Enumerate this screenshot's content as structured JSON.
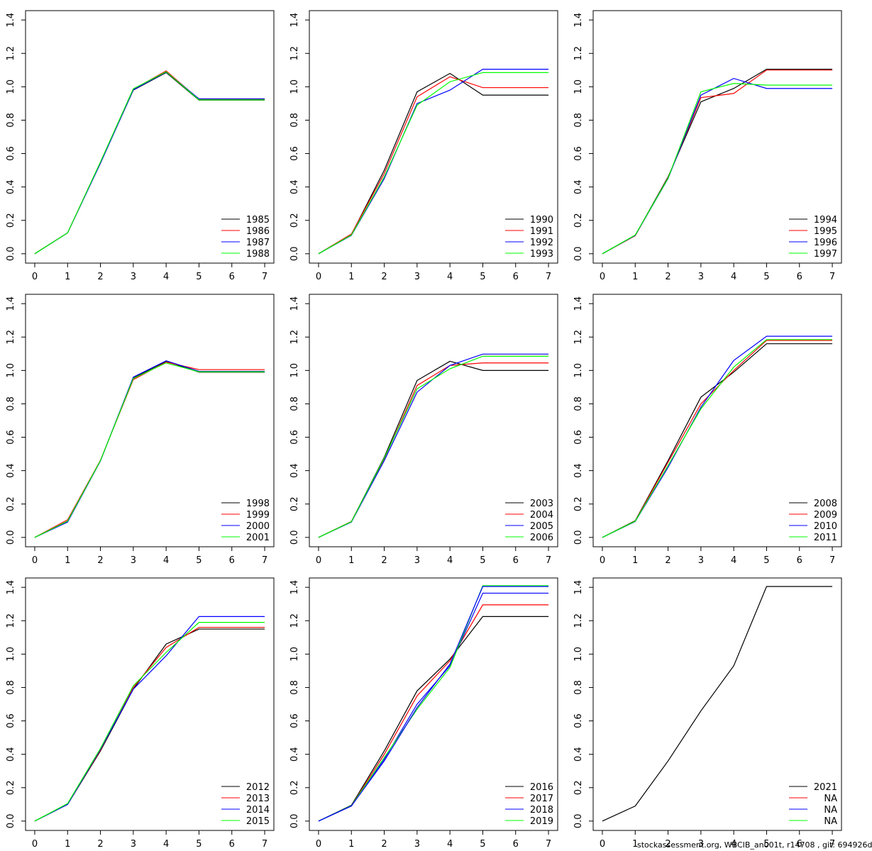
{
  "colors": {
    "series": [
      "#000000",
      "#ff0000",
      "#0000ff",
      "#00ff00"
    ],
    "axis": "#000000",
    "background": "#ffffff"
  },
  "footer": "stockassessment.org, WBCIB_an001t, r14708 , git: 694926d",
  "chart_data": [
    {
      "type": "line",
      "x": [
        0,
        1,
        2,
        3,
        4,
        5,
        6,
        7
      ],
      "xlim": [
        0,
        7
      ],
      "ylim": [
        0,
        1.4
      ],
      "grid": false,
      "legend": "bottom-right",
      "xticks": [
        "0",
        "1",
        "2",
        "3",
        "4",
        "5",
        "6",
        "7"
      ],
      "yticks": [
        "0.0",
        "0.2",
        "0.4",
        "0.6",
        "0.8",
        "1.0",
        "1.2",
        "1.4"
      ],
      "series": [
        {
          "name": "1985",
          "values": [
            0,
            0.125,
            0.545,
            0.98,
            1.085,
            0.92,
            0.92,
            0.92
          ]
        },
        {
          "name": "1986",
          "values": [
            0,
            0.125,
            0.548,
            0.985,
            1.095,
            0.925,
            0.925,
            0.925
          ]
        },
        {
          "name": "1987",
          "values": [
            0,
            0.125,
            0.542,
            0.982,
            1.088,
            0.928,
            0.928,
            0.928
          ]
        },
        {
          "name": "1988",
          "values": [
            0,
            0.125,
            0.55,
            0.988,
            1.09,
            0.922,
            0.922,
            0.922
          ]
        }
      ]
    },
    {
      "type": "line",
      "x": [
        0,
        1,
        2,
        3,
        4,
        5,
        6,
        7
      ],
      "xlim": [
        0,
        7
      ],
      "ylim": [
        0,
        1.4
      ],
      "grid": false,
      "legend": "bottom-right",
      "xticks": [
        "0",
        "1",
        "2",
        "3",
        "4",
        "5",
        "6",
        "7"
      ],
      "yticks": [
        "0.0",
        "0.2",
        "0.4",
        "0.6",
        "0.8",
        "1.0",
        "1.2",
        "1.4"
      ],
      "series": [
        {
          "name": "1990",
          "values": [
            0,
            0.115,
            0.5,
            0.97,
            1.08,
            0.95,
            0.95,
            0.95
          ]
        },
        {
          "name": "1991",
          "values": [
            0,
            0.118,
            0.48,
            0.94,
            1.06,
            0.995,
            0.995,
            0.995
          ]
        },
        {
          "name": "1992",
          "values": [
            0,
            0.11,
            0.45,
            0.9,
            0.98,
            1.105,
            1.105,
            1.105
          ]
        },
        {
          "name": "1993",
          "values": [
            0,
            0.112,
            0.46,
            0.89,
            1.03,
            1.085,
            1.085,
            1.085
          ]
        }
      ]
    },
    {
      "type": "line",
      "x": [
        0,
        1,
        2,
        3,
        4,
        5,
        6,
        7
      ],
      "xlim": [
        0,
        7
      ],
      "ylim": [
        0,
        1.4
      ],
      "grid": false,
      "legend": "bottom-right",
      "xticks": [
        "0",
        "1",
        "2",
        "3",
        "4",
        "5",
        "6",
        "7"
      ],
      "yticks": [
        "0.0",
        "0.2",
        "0.4",
        "0.6",
        "0.8",
        "1.0",
        "1.2",
        "1.4"
      ],
      "series": [
        {
          "name": "1994",
          "values": [
            0,
            0.11,
            0.46,
            0.91,
            0.99,
            1.105,
            1.105,
            1.105
          ]
        },
        {
          "name": "1995",
          "values": [
            0,
            0.108,
            0.455,
            0.935,
            0.96,
            1.1,
            1.1,
            1.1
          ]
        },
        {
          "name": "1996",
          "values": [
            0,
            0.11,
            0.45,
            0.95,
            1.05,
            0.99,
            0.99,
            0.99
          ]
        },
        {
          "name": "1997",
          "values": [
            0,
            0.112,
            0.452,
            0.97,
            1.02,
            1.01,
            1.01,
            1.01
          ]
        }
      ]
    },
    {
      "type": "line",
      "x": [
        0,
        1,
        2,
        3,
        4,
        5,
        6,
        7
      ],
      "xlim": [
        0,
        7
      ],
      "ylim": [
        0,
        1.4
      ],
      "grid": false,
      "legend": "bottom-right",
      "xticks": [
        "0",
        "1",
        "2",
        "3",
        "4",
        "5",
        "6",
        "7"
      ],
      "yticks": [
        "0.0",
        "0.2",
        "0.4",
        "0.6",
        "0.8",
        "1.0",
        "1.2",
        "1.4"
      ],
      "series": [
        {
          "name": "1998",
          "values": [
            0,
            0.095,
            0.46,
            0.955,
            1.055,
            0.99,
            0.99,
            0.99
          ]
        },
        {
          "name": "1999",
          "values": [
            0,
            0.105,
            0.462,
            0.945,
            1.05,
            1.005,
            1.005,
            1.005
          ]
        },
        {
          "name": "2000",
          "values": [
            0,
            0.092,
            0.458,
            0.96,
            1.058,
            0.995,
            0.995,
            0.995
          ]
        },
        {
          "name": "2001",
          "values": [
            0,
            0.098,
            0.46,
            0.952,
            1.045,
            0.992,
            0.992,
            0.992
          ]
        }
      ]
    },
    {
      "type": "line",
      "x": [
        0,
        1,
        2,
        3,
        4,
        5,
        6,
        7
      ],
      "xlim": [
        0,
        7
      ],
      "ylim": [
        0,
        1.4
      ],
      "grid": false,
      "legend": "bottom-right",
      "xticks": [
        "0",
        "1",
        "2",
        "3",
        "4",
        "5",
        "6",
        "7"
      ],
      "yticks": [
        "0.0",
        "0.2",
        "0.4",
        "0.6",
        "0.8",
        "1.0",
        "1.2",
        "1.4"
      ],
      "series": [
        {
          "name": "2003",
          "values": [
            0,
            0.095,
            0.48,
            0.94,
            1.055,
            1.0,
            1.0,
            1.0
          ]
        },
        {
          "name": "2004",
          "values": [
            0,
            0.095,
            0.47,
            0.91,
            1.03,
            1.045,
            1.045,
            1.045
          ]
        },
        {
          "name": "2005",
          "values": [
            0,
            0.092,
            0.46,
            0.87,
            1.03,
            1.098,
            1.098,
            1.098
          ]
        },
        {
          "name": "2006",
          "values": [
            0,
            0.094,
            0.475,
            0.89,
            1.01,
            1.085,
            1.085,
            1.085
          ]
        }
      ]
    },
    {
      "type": "line",
      "x": [
        0,
        1,
        2,
        3,
        4,
        5,
        6,
        7
      ],
      "xlim": [
        0,
        7
      ],
      "ylim": [
        0,
        1.4
      ],
      "grid": false,
      "legend": "bottom-right",
      "xticks": [
        "0",
        "1",
        "2",
        "3",
        "4",
        "5",
        "6",
        "7"
      ],
      "yticks": [
        "0.0",
        "0.2",
        "0.4",
        "0.6",
        "0.8",
        "1.0",
        "1.2",
        "1.4"
      ],
      "series": [
        {
          "name": "2008",
          "values": [
            0,
            0.1,
            0.46,
            0.84,
            0.99,
            1.16,
            1.16,
            1.16
          ]
        },
        {
          "name": "2009",
          "values": [
            0,
            0.098,
            0.45,
            0.8,
            1.0,
            1.18,
            1.18,
            1.18
          ]
        },
        {
          "name": "2010",
          "values": [
            0,
            0.095,
            0.42,
            0.78,
            1.06,
            1.205,
            1.205,
            1.205
          ]
        },
        {
          "name": "2011",
          "values": [
            0,
            0.097,
            0.43,
            0.77,
            1.02,
            1.185,
            1.185,
            1.185
          ]
        }
      ]
    },
    {
      "type": "line",
      "x": [
        0,
        1,
        2,
        3,
        4,
        5,
        6,
        7
      ],
      "xlim": [
        0,
        7
      ],
      "ylim": [
        0,
        1.4
      ],
      "grid": false,
      "legend": "bottom-right",
      "xticks": [
        "0",
        "1",
        "2",
        "3",
        "4",
        "5",
        "6",
        "7"
      ],
      "yticks": [
        "0.0",
        "0.2",
        "0.4",
        "0.6",
        "0.8",
        "1.0",
        "1.2",
        "1.4"
      ],
      "series": [
        {
          "name": "2012",
          "values": [
            0,
            0.1,
            0.42,
            0.79,
            1.06,
            1.15,
            1.15,
            1.15
          ]
        },
        {
          "name": "2013",
          "values": [
            0,
            0.102,
            0.425,
            0.8,
            1.04,
            1.16,
            1.16,
            1.16
          ]
        },
        {
          "name": "2014",
          "values": [
            0,
            0.1,
            0.43,
            0.79,
            0.99,
            1.225,
            1.225,
            1.225
          ]
        },
        {
          "name": "2015",
          "values": [
            0,
            0.105,
            0.435,
            0.81,
            1.01,
            1.19,
            1.19,
            1.19
          ]
        }
      ]
    },
    {
      "type": "line",
      "x": [
        0,
        1,
        2,
        3,
        4,
        5,
        6,
        7
      ],
      "xlim": [
        0,
        7
      ],
      "ylim": [
        0,
        1.4
      ],
      "grid": false,
      "legend": "bottom-right",
      "xticks": [
        "0",
        "1",
        "2",
        "3",
        "4",
        "5",
        "6",
        "7"
      ],
      "yticks": [
        "0.0",
        "0.2",
        "0.4",
        "0.6",
        "0.8",
        "1.0",
        "1.2",
        "1.4"
      ],
      "series": [
        {
          "name": "2016",
          "values": [
            0,
            0.095,
            0.42,
            0.78,
            0.97,
            1.225,
            1.225,
            1.225
          ]
        },
        {
          "name": "2017",
          "values": [
            0,
            0.092,
            0.4,
            0.75,
            0.96,
            1.295,
            1.295,
            1.295
          ]
        },
        {
          "name": "2018",
          "values": [
            0,
            0.09,
            0.37,
            0.7,
            0.93,
            1.365,
            1.365,
            1.365
          ]
        },
        {
          "name": "2019",
          "values": [
            0,
            0.093,
            0.38,
            0.67,
            0.92,
            1.41,
            1.41,
            1.41
          ]
        },
        {
          "name": "",
          "color_index": 2,
          "values": [
            0,
            0.091,
            0.36,
            0.68,
            0.94,
            1.405,
            1.405,
            1.405
          ]
        }
      ]
    },
    {
      "type": "line",
      "x": [
        0,
        1,
        2,
        3,
        4,
        5,
        6,
        7
      ],
      "xlim": [
        0,
        7
      ],
      "ylim": [
        0,
        1.4
      ],
      "grid": false,
      "legend": "bottom-right",
      "xticks": [
        "0",
        "1",
        "2",
        "3",
        "4",
        "5",
        "6",
        "7"
      ],
      "yticks": [
        "0.0",
        "0.2",
        "0.4",
        "0.6",
        "0.8",
        "1.0",
        "1.2",
        "1.4"
      ],
      "series": [
        {
          "name": "2021",
          "values": [
            0,
            0.09,
            0.36,
            0.66,
            0.93,
            1.405,
            1.405,
            1.405
          ]
        }
      ],
      "legend_entries": [
        "2021",
        "NA",
        "NA",
        "NA"
      ]
    }
  ]
}
